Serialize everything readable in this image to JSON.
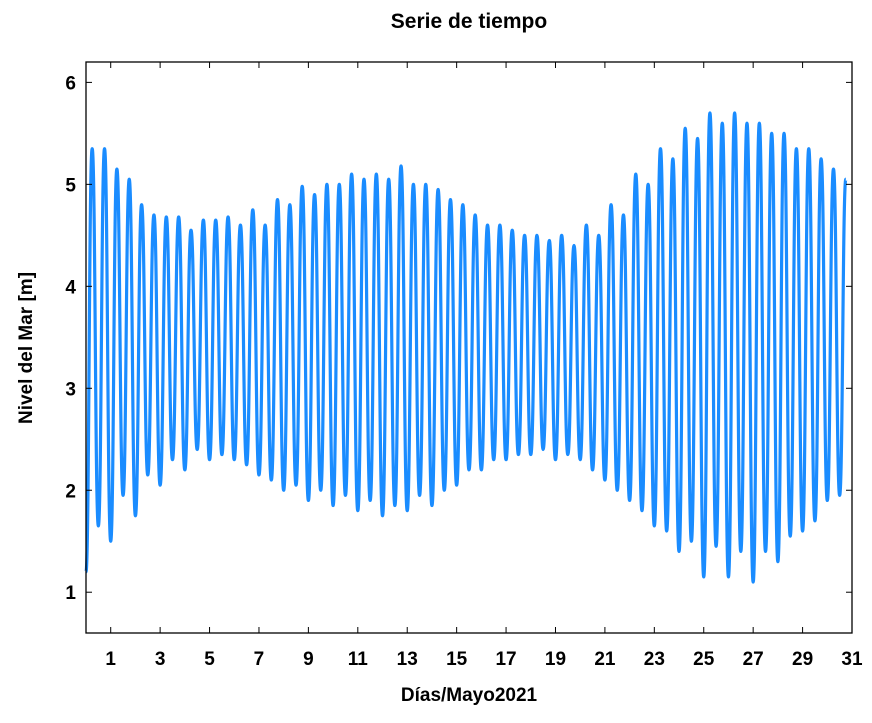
{
  "chart_data": {
    "type": "line",
    "title": "Serie de tiempo",
    "x_label": "Días/Mayo2021",
    "y_label": "Nivel del Mar [m]",
    "xlim": [
      0,
      31
    ],
    "xticks": [
      1,
      3,
      5,
      7,
      9,
      11,
      13,
      15,
      17,
      19,
      21,
      23,
      25,
      27,
      29,
      31
    ],
    "ylim": [
      0.6,
      6.2
    ],
    "yticks": [
      1,
      2,
      3,
      4,
      5,
      6
    ],
    "x": [
      0,
      0.25,
      0.5,
      0.75,
      1,
      1.25,
      1.5,
      1.75,
      2,
      2.25,
      2.5,
      2.75,
      3,
      3.25,
      3.5,
      3.75,
      4,
      4.25,
      4.5,
      4.75,
      5,
      5.25,
      5.5,
      5.75,
      6,
      6.25,
      6.5,
      6.75,
      7,
      7.25,
      7.5,
      7.75,
      8,
      8.25,
      8.5,
      8.75,
      9,
      9.25,
      9.5,
      9.75,
      10,
      10.25,
      10.5,
      10.75,
      11,
      11.25,
      11.5,
      11.75,
      12,
      12.25,
      12.5,
      12.75,
      13,
      13.25,
      13.5,
      13.75,
      14,
      14.25,
      14.5,
      14.75,
      15,
      15.25,
      15.5,
      15.75,
      16,
      16.25,
      16.5,
      16.75,
      17,
      17.25,
      17.5,
      17.75,
      18,
      18.25,
      18.5,
      18.75,
      19,
      19.25,
      19.5,
      19.75,
      20,
      20.25,
      20.5,
      20.75,
      21,
      21.25,
      21.5,
      21.75,
      22,
      22.25,
      22.5,
      22.75,
      23,
      23.25,
      23.5,
      23.75,
      24,
      24.25,
      24.5,
      24.75,
      25,
      25.25,
      25.5,
      25.75,
      26,
      26.25,
      26.5,
      26.75,
      27,
      27.25,
      27.5,
      27.75,
      28,
      28.25,
      28.5,
      28.75,
      29,
      29.25,
      29.5,
      29.75,
      30,
      30.25,
      30.5,
      30.75
    ],
    "series": [
      {
        "name": "Nivel del Mar",
        "color": "#1a8cff",
        "values": [
          1.2,
          5.35,
          1.65,
          5.35,
          1.5,
          5.15,
          1.95,
          5.05,
          1.75,
          4.8,
          2.15,
          4.7,
          2.05,
          4.68,
          2.3,
          4.68,
          2.2,
          4.55,
          2.4,
          4.65,
          2.3,
          4.65,
          2.35,
          4.68,
          2.3,
          4.6,
          2.25,
          4.75,
          2.15,
          4.6,
          2.1,
          4.85,
          2.0,
          4.8,
          2.05,
          4.98,
          1.9,
          4.9,
          2.0,
          5.0,
          1.85,
          5.0,
          1.95,
          5.1,
          1.8,
          5.05,
          1.9,
          5.1,
          1.75,
          5.05,
          1.85,
          5.18,
          1.8,
          5.0,
          1.95,
          5.0,
          1.85,
          4.95,
          2.0,
          4.85,
          2.05,
          4.8,
          2.2,
          4.7,
          2.2,
          4.6,
          2.3,
          4.6,
          2.3,
          4.55,
          2.35,
          4.5,
          2.35,
          4.5,
          2.4,
          4.45,
          2.3,
          4.5,
          2.35,
          4.4,
          2.3,
          4.6,
          2.2,
          4.5,
          2.1,
          4.8,
          2.0,
          4.7,
          1.9,
          5.1,
          1.8,
          5.0,
          1.65,
          5.35,
          1.6,
          5.25,
          1.4,
          5.55,
          1.5,
          5.45,
          1.15,
          5.7,
          1.45,
          5.6,
          1.15,
          5.7,
          1.4,
          5.6,
          1.1,
          5.6,
          1.4,
          5.5,
          1.3,
          5.5,
          1.55,
          5.35,
          1.6,
          5.35,
          1.7,
          5.25,
          1.9,
          5.15,
          1.95,
          5.05
        ]
      }
    ]
  }
}
